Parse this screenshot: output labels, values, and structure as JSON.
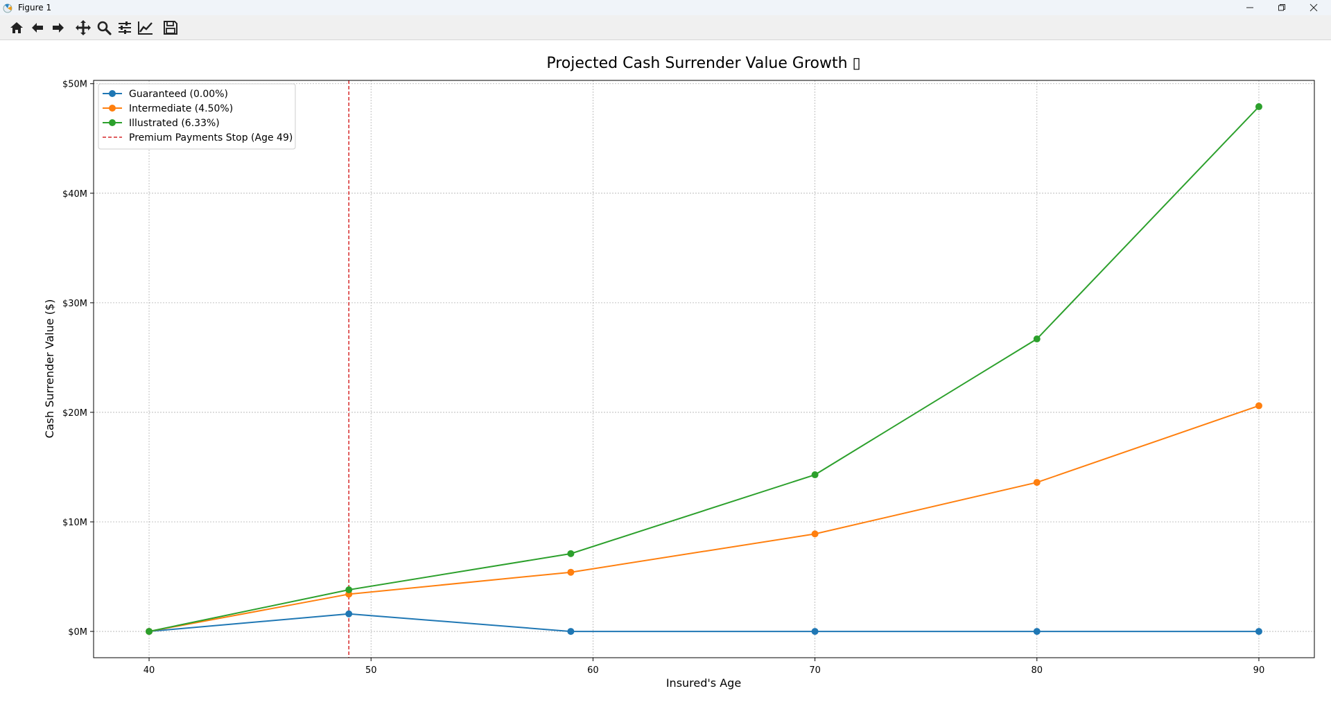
{
  "window": {
    "title": "Figure 1",
    "icon": "matplotlib-icon",
    "controls": [
      "minimize-icon",
      "restore-icon",
      "close-icon"
    ]
  },
  "toolbar": {
    "buttons": [
      "home-icon",
      "back-icon",
      "forward-icon",
      "pan-icon",
      "zoom-icon",
      "configure-subplots-icon",
      "edit-axes-icon",
      "save-icon"
    ]
  },
  "chart_data": {
    "type": "line",
    "title": "Projected Cash Surrender Value Growth ▯",
    "xlabel": "Insured's Age",
    "ylabel": "Cash Surrender Value ($)",
    "xlim": [
      37.5,
      92.5
    ],
    "ylim": [
      -2.4,
      50.3
    ],
    "x_ticks": [
      40,
      50,
      60,
      70,
      80,
      90
    ],
    "x_tick_labels": [
      "40",
      "50",
      "60",
      "70",
      "80",
      "90"
    ],
    "y_ticks": [
      0,
      10,
      20,
      30,
      40,
      50
    ],
    "y_tick_labels": [
      "$0M",
      "$10M",
      "$20M",
      "$30M",
      "$40M",
      "$50M"
    ],
    "grid": true,
    "legend_position": "top-left",
    "x": [
      40,
      49,
      59,
      70,
      80,
      90
    ],
    "series": [
      {
        "name": "Guaranteed (0.00%)",
        "color": "#1f77b4",
        "marker": "circle",
        "values": [
          0,
          1.6,
          0,
          0,
          0,
          0
        ]
      },
      {
        "name": "Intermediate (4.50%)",
        "color": "#ff7f0e",
        "marker": "circle",
        "values": [
          0,
          3.4,
          5.4,
          8.9,
          13.6,
          20.6
        ]
      },
      {
        "name": "Illustrated (6.33%)",
        "color": "#2ca02c",
        "marker": "circle",
        "values": [
          0,
          3.8,
          7.1,
          14.3,
          26.7,
          47.9
        ]
      }
    ],
    "reference_lines": [
      {
        "name": "Premium Payments Stop (Age 49)",
        "x": 49,
        "color": "#d62728",
        "style": "dashed"
      }
    ]
  }
}
